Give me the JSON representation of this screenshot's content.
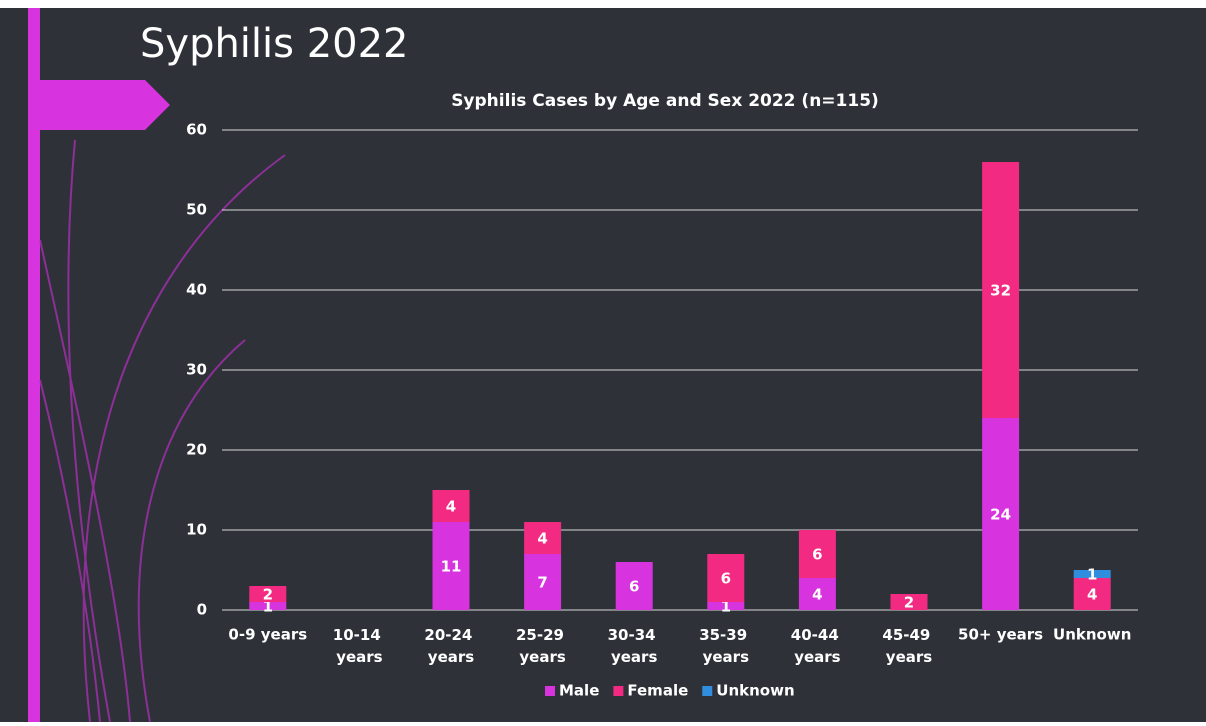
{
  "slide_title": "Syphilis 2022",
  "chart_data": {
    "type": "bar",
    "stacked": true,
    "title": "Syphilis Cases by Age and Sex 2022 (n=115)",
    "categories": [
      "0-9 years",
      "10-14 years",
      "20-24 years",
      "25-29 years",
      "30-34 years",
      "35-39 years",
      "40-44 years",
      "45-49 years",
      "50+ years",
      "Unknown"
    ],
    "series": [
      {
        "name": "Male",
        "color": "#d733df",
        "values": [
          1,
          null,
          11,
          7,
          6,
          1,
          4,
          null,
          24,
          null
        ]
      },
      {
        "name": "Female",
        "color": "#f22a82",
        "values": [
          2,
          null,
          4,
          4,
          null,
          6,
          6,
          2,
          32,
          4
        ]
      },
      {
        "name": "Unknown",
        "color": "#2f8ede",
        "values": [
          null,
          null,
          null,
          null,
          null,
          null,
          null,
          null,
          null,
          1
        ]
      }
    ],
    "ylim": [
      0,
      60
    ],
    "yticks": [
      0,
      10,
      20,
      30,
      40,
      50,
      60
    ],
    "grid": true,
    "legend": "bottom"
  }
}
